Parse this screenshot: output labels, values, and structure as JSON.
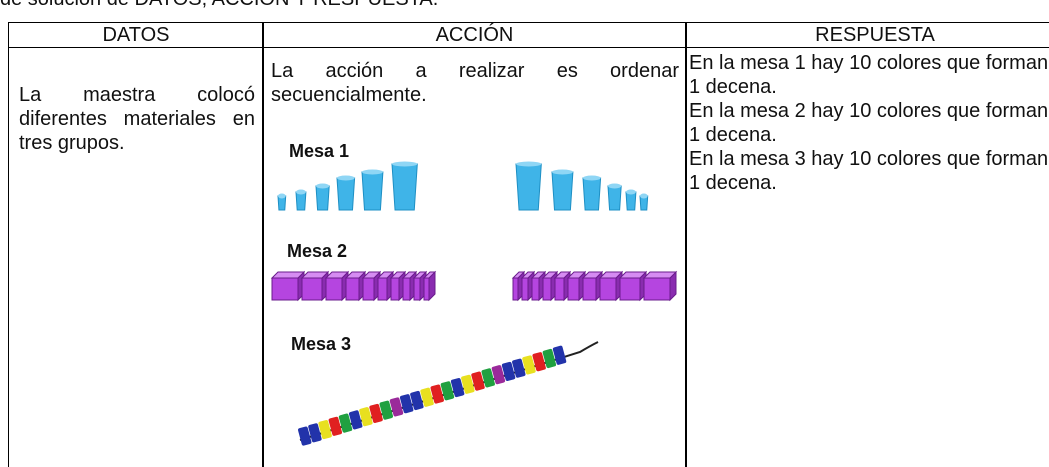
{
  "caption": "de solución de DATOS, ACCIÓN Y RESPUESTA.",
  "table": {
    "headers": [
      "DATOS",
      "ACCIÓN",
      "RESPUESTA"
    ],
    "rows": [
      {
        "datos": "La maestra colocó diferentes materiales en tres grupos.",
        "accion": {
          "text": "La acción a realizar es ordenar secuencialmente.",
          "figures": [
            "Mesa 1",
            "Mesa 2",
            "Mesa 3"
          ]
        },
        "respuesta": [
          "En la mesa 1 hay 10 colores que forman 1 decena.",
          "En la mesa 2 hay 10 colores que forman 1 decena.",
          "En la mesa 3 hay 10 colores que forman 1 decena."
        ]
      }
    ]
  }
}
